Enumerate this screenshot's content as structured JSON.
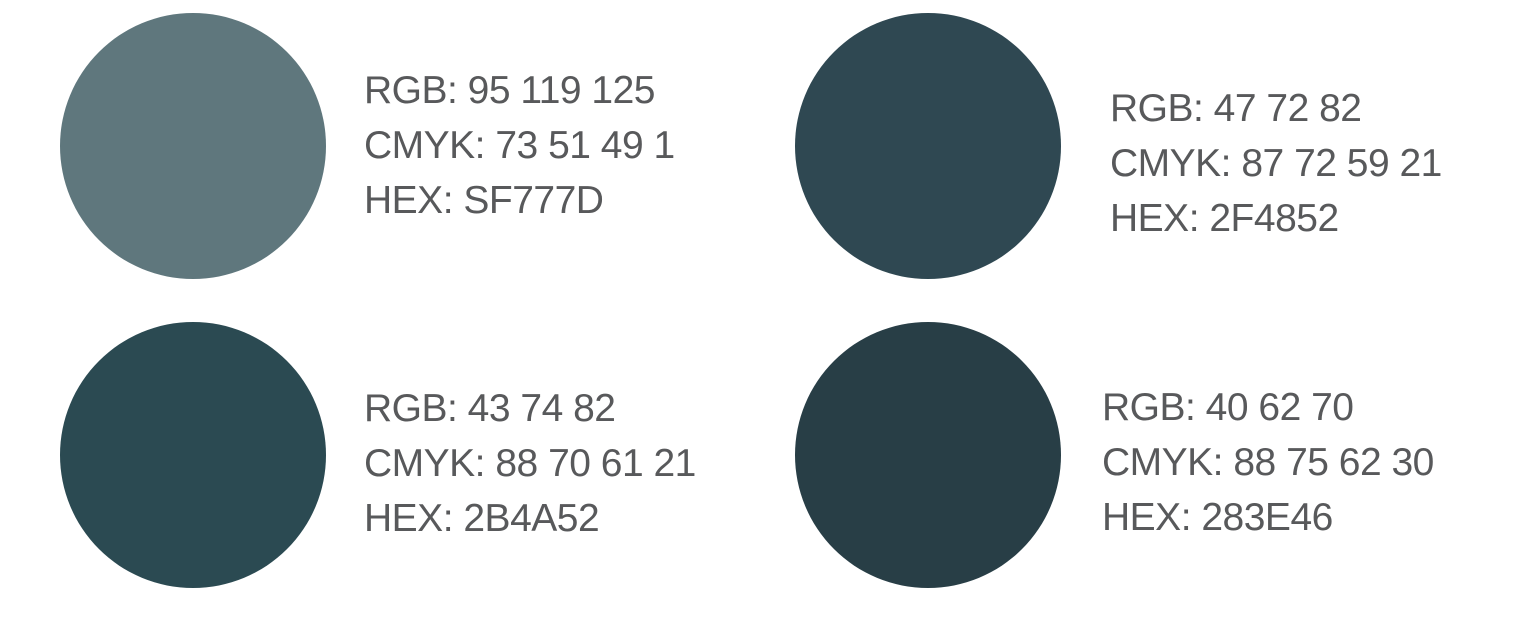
{
  "swatches": [
    {
      "color": "#5F777D",
      "rgb": "RGB: 95 119 125",
      "cmyk": "CMYK: 73 51 49 1",
      "hex": "HEX: SF777D"
    },
    {
      "color": "#2F4852",
      "rgb": "RGB: 47 72 82",
      "cmyk": "CMYK: 87 72 59 21",
      "hex": "HEX: 2F4852"
    },
    {
      "color": "#2B4A52",
      "rgb": "RGB: 43 74 82",
      "cmyk": "CMYK: 88 70 61 21",
      "hex": "HEX: 2B4A52"
    },
    {
      "color": "#283E46",
      "rgb": "RGB: 40 62 70",
      "cmyk": "CMYK: 88 75 62 30",
      "hex": "HEX: 283E46"
    }
  ]
}
